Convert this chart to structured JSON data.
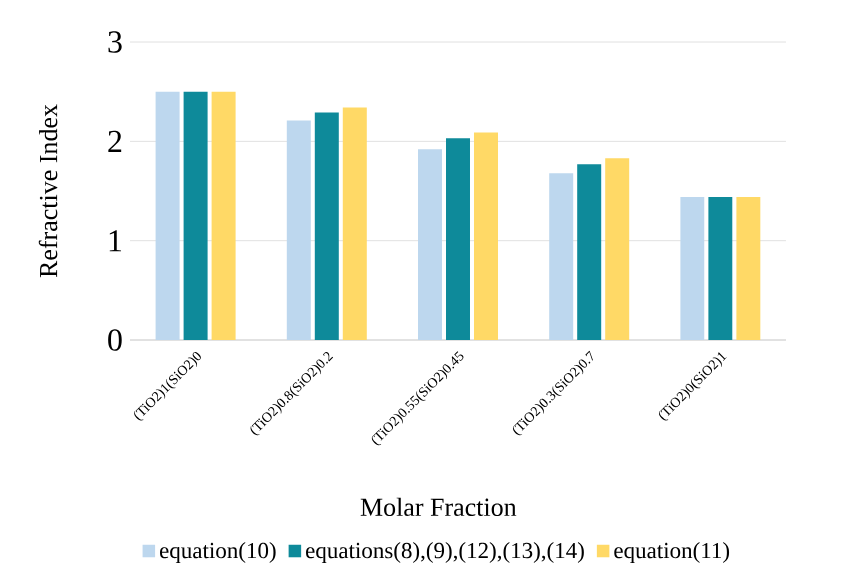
{
  "chart_data": {
    "type": "bar",
    "xlabel": "Molar Fraction",
    "ylabel": "Refractive Index",
    "categories": [
      "(TiO2)1(SiO2)0",
      "(TiO2)0.8(SiO2)0.2",
      "(TiO2)0.55(SiO2)0.45",
      "(TiO2)0.3(SiO2)0.7",
      "(TiO2)0(SiO2)1"
    ],
    "series": [
      {
        "name": "equation(10)",
        "color": "#bdd7ee",
        "values": [
          2.5,
          2.21,
          1.92,
          1.68,
          1.44
        ]
      },
      {
        "name": "equations(8),(9),(12),(13),(14)",
        "color": "#0e8a9a",
        "values": [
          2.5,
          2.29,
          2.03,
          1.77,
          1.44
        ]
      },
      {
        "name": "equation(11)",
        "color": "#ffd966",
        "values": [
          2.5,
          2.34,
          2.09,
          1.83,
          1.44
        ]
      }
    ],
    "ylim": [
      0,
      3
    ],
    "yticks": [
      0,
      1,
      2,
      3
    ],
    "grid": "y",
    "legend": "bottom"
  }
}
